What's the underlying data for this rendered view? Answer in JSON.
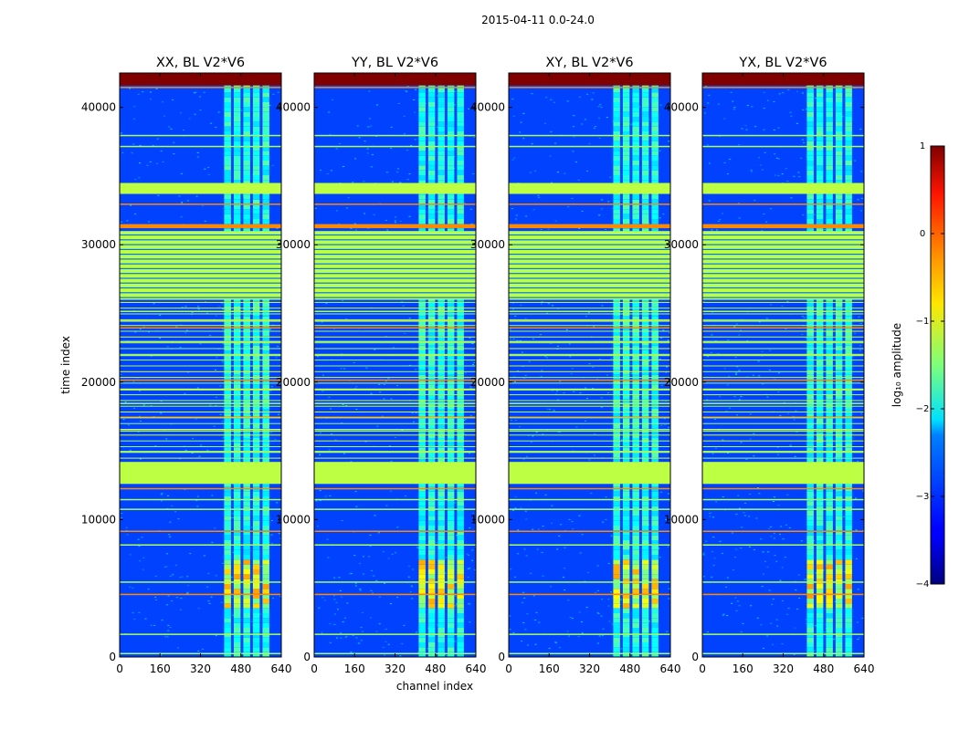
{
  "chart_data": {
    "type": "heatmap",
    "suptitle": "2015-04-11 0.0-24.0",
    "xlabel": "channel index",
    "ylabel": "time index",
    "xlim": [
      0,
      640
    ],
    "ylim": [
      0,
      42500
    ],
    "xticks": [
      0,
      160,
      320,
      480,
      640
    ],
    "yticks": [
      0,
      10000,
      20000,
      30000,
      40000
    ],
    "panels": [
      {
        "title": "XX, BL V2*V6",
        "bright_channel_range": [
          410,
          600
        ]
      },
      {
        "title": "YY, BL V2*V6",
        "bright_channel_range": [
          410,
          600
        ]
      },
      {
        "title": "XY, BL V2*V6",
        "bright_channel_range": [
          410,
          600
        ]
      },
      {
        "title": "YX, BL V2*V6",
        "bright_channel_range": [
          410,
          600
        ]
      }
    ],
    "colorbar": {
      "label": "log₁₀ amplitude",
      "range": [
        -4,
        1
      ],
      "ticks": [
        1,
        0,
        -1,
        -2,
        -3,
        -4
      ],
      "tick_labels": [
        "1",
        "0",
        "−1",
        "−2",
        "−3",
        "−4"
      ],
      "colormap": "jet"
    },
    "flagged_time_bands": [
      {
        "t0": 41600,
        "t1": 42500,
        "level": 1.0
      },
      {
        "t0": 33700,
        "t1": 34500,
        "level": -1.2
      },
      {
        "t0": 31200,
        "t1": 31500,
        "level": -0.3
      },
      {
        "t0": 26000,
        "t1": 31000,
        "level": -1.2
      },
      {
        "t0": 12600,
        "t1": 14200,
        "level": -1.2
      }
    ],
    "notable_time_lines": [
      41500,
      38000,
      37200,
      33000,
      25200,
      24500,
      24000,
      23000,
      22000,
      20200,
      19500,
      18500,
      17500,
      16500,
      15000,
      12300,
      11500,
      10800,
      9200,
      8200,
      5500,
      4600,
      1700,
      300
    ]
  }
}
